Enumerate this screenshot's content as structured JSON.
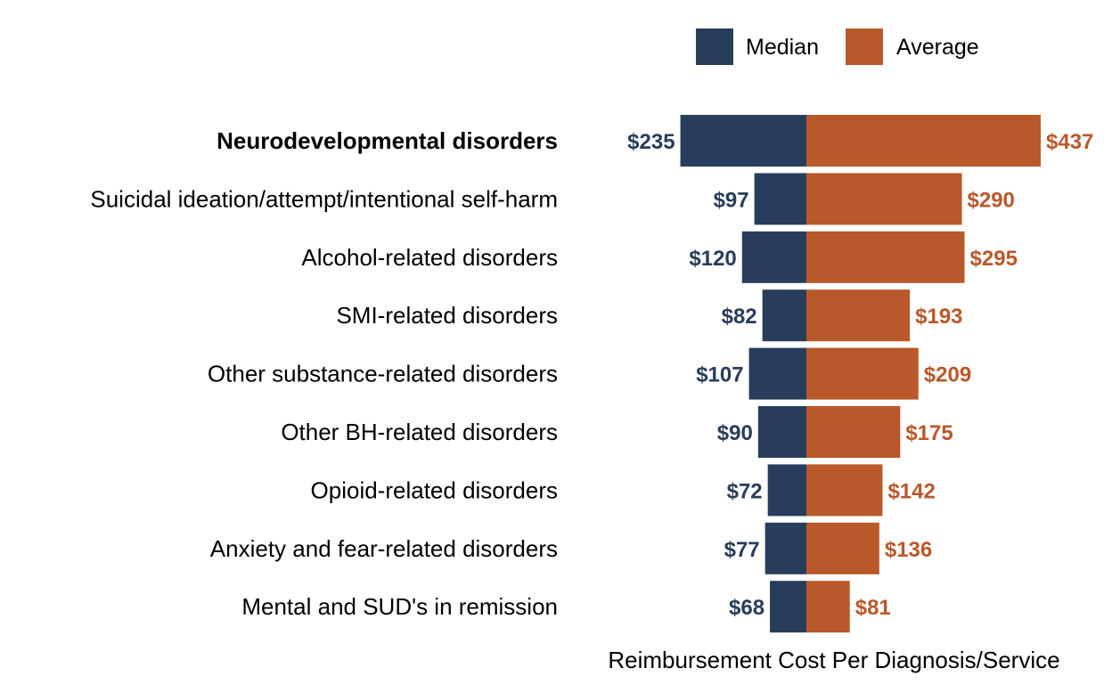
{
  "chart_data": {
    "type": "bar",
    "orientation": "diverging-horizontal",
    "title": "",
    "xlabel": "Reimbursement Cost Per Diagnosis/Service",
    "ylabel": "",
    "categories": [
      "Neurodevelopmental disorders",
      "Suicidal ideation/attempt/intentional self-harm",
      "Alcohol-related disorders",
      "SMI-related disorders",
      "Other substance-related disorders",
      "Other BH-related disorders",
      "Opioid-related disorders",
      "Anxiety and fear-related disorders",
      "Mental and SUD's in remission"
    ],
    "highlighted_category": "Neurodevelopmental disorders",
    "series": [
      {
        "name": "Median",
        "color": "#283d5b",
        "values": [
          235,
          97,
          120,
          82,
          107,
          90,
          72,
          77,
          68
        ],
        "labels": [
          "$235",
          "$97",
          "$120",
          "$82",
          "$107",
          "$90",
          "$72",
          "$77",
          "$68"
        ]
      },
      {
        "name": "Average",
        "color": "#b9582a",
        "values": [
          437,
          290,
          295,
          193,
          209,
          175,
          142,
          136,
          81
        ],
        "labels": [
          "$437",
          "$290",
          "$295",
          "$193",
          "$209",
          "$175",
          "$142",
          "$136",
          "$81"
        ]
      }
    ],
    "legend_position": "top-right",
    "grid": false
  }
}
